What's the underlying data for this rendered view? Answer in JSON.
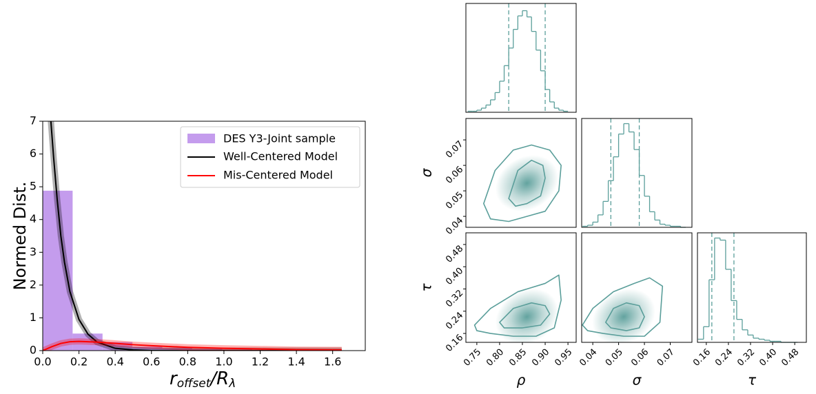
{
  "chart_data": [
    {
      "type": "histogram",
      "ylabel": "Normed Dist.",
      "xlabel": [
        "r",
        "offset",
        "/R",
        "λ"
      ],
      "xlim": [
        0,
        1.78
      ],
      "ylim": [
        0,
        7
      ],
      "xticks": [
        {
          "value": 0,
          "label": "0.0"
        },
        0.2,
        0.4,
        0.6,
        0.8,
        {
          "value": 1,
          "label": "1.0"
        },
        1.2,
        1.4,
        1.6
      ],
      "yticks": [
        0,
        1,
        2,
        3,
        4,
        5,
        6,
        7
      ],
      "hist_name": "DES Y3-Joint sample",
      "hist_color": "#b583e8",
      "bins": [
        0,
        0.165,
        0.33,
        0.495,
        0.66,
        0.825,
        0.99,
        1.155,
        1.32,
        1.485,
        1.65
      ],
      "counts": [
        4.88,
        0.52,
        0.26,
        0.12,
        0.08,
        0.05,
        0.03,
        0.02,
        0.01,
        0.01
      ],
      "legend": "upper right",
      "series": [
        {
          "name": "Well-Centered Model",
          "color": "#000000",
          "x": [
            0.045,
            0.06,
            0.08,
            0.1,
            0.12,
            0.15,
            0.2,
            0.25,
            0.3,
            0.4,
            0.5,
            0.6,
            0.8,
            1.0,
            1.2,
            1.4,
            1.65
          ],
          "values": [
            7,
            5.9,
            4.6,
            3.5,
            2.7,
            1.8,
            0.95,
            0.5,
            0.26,
            0.07,
            0.02,
            0,
            0,
            0,
            0,
            0,
            0
          ]
        },
        {
          "name": "Mis-Centered Model",
          "color": "#ff0000",
          "x": [
            0,
            0.05,
            0.1,
            0.15,
            0.2,
            0.3,
            0.4,
            0.5,
            0.6,
            0.8,
            1.0,
            1.2,
            1.4,
            1.65
          ],
          "values": [
            0,
            0.12,
            0.22,
            0.27,
            0.28,
            0.26,
            0.22,
            0.18,
            0.15,
            0.1,
            0.07,
            0.05,
            0.03,
            0.02
          ]
        }
      ]
    },
    {
      "type": "corner",
      "color": "#5a9e9a",
      "params": [
        {
          "label": "ρ",
          "lim": [
            0.726,
            0.968
          ],
          "ticks": [
            0.75,
            {
              "value": 0.8,
              "label": "0.80"
            },
            0.85,
            {
              "value": 0.9,
              "label": "0.90"
            },
            0.95
          ],
          "bins": [
            0.73,
            0.74,
            0.75,
            0.76,
            0.77,
            0.78,
            0.79,
            0.8,
            0.81,
            0.82,
            0.83,
            0.84,
            0.85,
            0.86,
            0.87,
            0.88,
            0.89,
            0.9,
            0.91,
            0.92,
            0.93,
            0.94,
            0.95
          ],
          "counts": [
            1,
            1,
            2,
            4,
            7,
            12,
            19,
            30,
            45,
            62,
            80,
            93,
            98,
            92,
            78,
            60,
            40,
            22,
            10,
            4,
            2,
            1
          ],
          "count_lim": [
            0,
            105
          ],
          "quantiles": [
            0.82,
            0.9
          ]
        },
        {
          "label": "σ",
          "lim": [
            0.0357,
            0.0784
          ],
          "ticks": [
            0.04,
            0.05,
            0.06,
            0.07
          ],
          "bins": [
            0.036,
            0.038,
            0.04,
            0.042,
            0.044,
            0.046,
            0.048,
            0.05,
            0.052,
            0.054,
            0.056,
            0.058,
            0.06,
            0.062,
            0.064,
            0.066,
            0.068,
            0.07,
            0.072,
            0.074,
            0.076
          ],
          "counts": [
            1,
            2,
            5,
            12,
            25,
            45,
            68,
            90,
            100,
            92,
            75,
            50,
            30,
            15,
            7,
            3,
            2,
            1,
            1,
            0
          ],
          "count_lim": [
            0,
            105
          ],
          "quantiles": [
            0.047,
            0.058
          ]
        },
        {
          "label": "τ",
          "lim": [
            0.128,
            0.522
          ],
          "ticks": [
            0.16,
            0.24,
            0.32,
            {
              "value": 0.4,
              "label": "0.40"
            },
            0.48
          ],
          "bins": [
            0.13,
            0.15,
            0.17,
            0.19,
            0.21,
            0.23,
            0.25,
            0.27,
            0.29,
            0.31,
            0.33,
            0.35,
            0.37,
            0.39,
            0.41,
            0.43,
            0.45,
            0.47,
            0.49
          ],
          "counts": [
            3,
            15,
            60,
            100,
            98,
            70,
            40,
            22,
            12,
            7,
            4,
            3,
            2,
            1,
            1,
            0,
            0,
            0
          ],
          "count_lim": [
            0,
            105
          ],
          "quantiles": [
            0.18,
            0.26
          ]
        }
      ],
      "panels": [
        {
          "peak": [
            0.86,
            0.053
          ],
          "contours": [
            {
              "x": [
                0.82,
                0.84,
                0.87,
                0.895,
                0.9,
                0.89,
                0.86,
                0.835
              ],
              "y": [
                0.047,
                0.058,
                0.062,
                0.06,
                0.055,
                0.048,
                0.045,
                0.044
              ]
            },
            {
              "x": [
                0.765,
                0.79,
                0.83,
                0.87,
                0.91,
                0.935,
                0.93,
                0.9,
                0.86,
                0.82,
                0.78
              ],
              "y": [
                0.045,
                0.058,
                0.066,
                0.068,
                0.066,
                0.06,
                0.05,
                0.042,
                0.04,
                0.038,
                0.039
              ]
            }
          ]
        },
        {
          "peak": [
            0.86,
            0.22
          ],
          "contours": [
            {
              "x": [
                0.8,
                0.83,
                0.87,
                0.9,
                0.91,
                0.89,
                0.85,
                0.81
              ],
              "y": [
                0.2,
                0.25,
                0.27,
                0.26,
                0.23,
                0.19,
                0.18,
                0.18
              ]
            },
            {
              "x": [
                0.745,
                0.78,
                0.84,
                0.9,
                0.93,
                0.935,
                0.92,
                0.88,
                0.83,
                0.78,
                0.75
              ],
              "y": [
                0.19,
                0.25,
                0.31,
                0.34,
                0.37,
                0.28,
                0.18,
                0.15,
                0.15,
                0.16,
                0.17
              ]
            }
          ]
        },
        {
          "peak": [
            0.052,
            0.22
          ],
          "contours": [
            {
              "x": [
                0.045,
                0.048,
                0.053,
                0.058,
                0.06,
                0.058,
                0.053,
                0.047
              ],
              "y": [
                0.2,
                0.25,
                0.27,
                0.26,
                0.22,
                0.18,
                0.17,
                0.18
              ]
            },
            {
              "x": [
                0.036,
                0.04,
                0.048,
                0.056,
                0.062,
                0.067,
                0.066,
                0.06,
                0.052,
                0.044,
                0.038
              ],
              "y": [
                0.19,
                0.25,
                0.31,
                0.34,
                0.36,
                0.33,
                0.2,
                0.15,
                0.15,
                0.16,
                0.17
              ]
            }
          ]
        }
      ]
    }
  ]
}
